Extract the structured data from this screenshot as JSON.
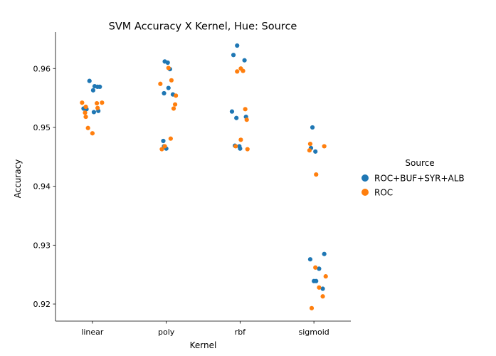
{
  "chart_data": {
    "type": "scatter",
    "title": "SVM Accuracy X Kernel, Hue: Source",
    "xlabel": "Kernel",
    "ylabel": "Accuracy",
    "categories": [
      "linear",
      "poly",
      "rbf",
      "sigmoid"
    ],
    "ylim": [
      0.9171,
      0.9662
    ],
    "yticks": [
      0.92,
      0.93,
      0.94,
      0.95,
      0.96
    ],
    "ytick_labels": [
      "0.92",
      "0.93",
      "0.94",
      "0.95",
      "0.96"
    ],
    "grid": false,
    "legend": {
      "title": "Source",
      "placement": "right"
    },
    "series": [
      {
        "name": "ROC+BUF+SYR+ALB",
        "color": "#1f77b4",
        "points": [
          {
            "x": "linear",
            "offset": -0.04,
            "y": 0.9579
          },
          {
            "x": "linear",
            "offset": 0.03,
            "y": 0.957
          },
          {
            "x": "linear",
            "offset": 0.07,
            "y": 0.9569
          },
          {
            "x": "linear",
            "offset": 0.1,
            "y": 0.9569
          },
          {
            "x": "linear",
            "offset": 0.01,
            "y": 0.9563
          },
          {
            "x": "linear",
            "offset": -0.12,
            "y": 0.9532
          },
          {
            "x": "linear",
            "offset": -0.08,
            "y": 0.9531
          },
          {
            "x": "linear",
            "offset": 0.08,
            "y": 0.9528
          },
          {
            "x": "linear",
            "offset": 0.02,
            "y": 0.9526
          },
          {
            "x": "poly",
            "offset": -0.02,
            "y": 0.9612
          },
          {
            "x": "poly",
            "offset": 0.02,
            "y": 0.961
          },
          {
            "x": "poly",
            "offset": 0.05,
            "y": 0.9599
          },
          {
            "x": "poly",
            "offset": 0.03,
            "y": 0.9567
          },
          {
            "x": "poly",
            "offset": -0.03,
            "y": 0.9558
          },
          {
            "x": "poly",
            "offset": 0.09,
            "y": 0.9556
          },
          {
            "x": "poly",
            "offset": -0.04,
            "y": 0.9477
          },
          {
            "x": "poly",
            "offset": -0.03,
            "y": 0.9468
          },
          {
            "x": "poly",
            "offset": 0.0,
            "y": 0.9464
          },
          {
            "x": "rbf",
            "offset": -0.04,
            "y": 0.9639
          },
          {
            "x": "rbf",
            "offset": -0.09,
            "y": 0.9623
          },
          {
            "x": "rbf",
            "offset": 0.06,
            "y": 0.9614
          },
          {
            "x": "rbf",
            "offset": -0.11,
            "y": 0.9527
          },
          {
            "x": "rbf",
            "offset": 0.08,
            "y": 0.9518
          },
          {
            "x": "rbf",
            "offset": -0.05,
            "y": 0.9516
          },
          {
            "x": "rbf",
            "offset": -0.07,
            "y": 0.9469
          },
          {
            "x": "rbf",
            "offset": -0.01,
            "y": 0.9468
          },
          {
            "x": "rbf",
            "offset": 0.0,
            "y": 0.9464
          },
          {
            "x": "sigmoid",
            "offset": -0.02,
            "y": 0.95
          },
          {
            "x": "sigmoid",
            "offset": -0.04,
            "y": 0.9465
          },
          {
            "x": "sigmoid",
            "offset": 0.02,
            "y": 0.9459
          },
          {
            "x": "sigmoid",
            "offset": 0.14,
            "y": 0.9285
          },
          {
            "x": "sigmoid",
            "offset": -0.05,
            "y": 0.9276
          },
          {
            "x": "sigmoid",
            "offset": 0.07,
            "y": 0.926
          },
          {
            "x": "sigmoid",
            "offset": 0.0,
            "y": 0.9239
          },
          {
            "x": "sigmoid",
            "offset": 0.03,
            "y": 0.9239
          },
          {
            "x": "sigmoid",
            "offset": 0.12,
            "y": 0.9226
          }
        ]
      },
      {
        "name": "ROC",
        "color": "#ff7f0e",
        "points": [
          {
            "x": "linear",
            "offset": -0.14,
            "y": 0.9542
          },
          {
            "x": "linear",
            "offset": 0.13,
            "y": 0.9542
          },
          {
            "x": "linear",
            "offset": 0.06,
            "y": 0.9541
          },
          {
            "x": "linear",
            "offset": -0.09,
            "y": 0.9535
          },
          {
            "x": "linear",
            "offset": 0.07,
            "y": 0.9533
          },
          {
            "x": "linear",
            "offset": -0.1,
            "y": 0.9525
          },
          {
            "x": "linear",
            "offset": -0.09,
            "y": 0.9518
          },
          {
            "x": "linear",
            "offset": -0.06,
            "y": 0.9499
          },
          {
            "x": "linear",
            "offset": 0.0,
            "y": 0.949
          },
          {
            "x": "poly",
            "offset": 0.03,
            "y": 0.9601
          },
          {
            "x": "poly",
            "offset": 0.07,
            "y": 0.958
          },
          {
            "x": "poly",
            "offset": -0.08,
            "y": 0.9574
          },
          {
            "x": "poly",
            "offset": 0.13,
            "y": 0.9554
          },
          {
            "x": "poly",
            "offset": 0.12,
            "y": 0.9539
          },
          {
            "x": "poly",
            "offset": 0.1,
            "y": 0.9532
          },
          {
            "x": "poly",
            "offset": 0.06,
            "y": 0.9481
          },
          {
            "x": "poly",
            "offset": -0.02,
            "y": 0.9468
          },
          {
            "x": "poly",
            "offset": -0.06,
            "y": 0.9463
          },
          {
            "x": "rbf",
            "offset": 0.01,
            "y": 0.96
          },
          {
            "x": "rbf",
            "offset": -0.04,
            "y": 0.9595
          },
          {
            "x": "rbf",
            "offset": 0.04,
            "y": 0.9596
          },
          {
            "x": "rbf",
            "offset": 0.07,
            "y": 0.9531
          },
          {
            "x": "rbf",
            "offset": 0.09,
            "y": 0.9513
          },
          {
            "x": "rbf",
            "offset": 0.01,
            "y": 0.9479
          },
          {
            "x": "rbf",
            "offset": -0.06,
            "y": 0.9468
          },
          {
            "x": "rbf",
            "offset": 0.1,
            "y": 0.9463
          },
          {
            "x": "sigmoid",
            "offset": -0.05,
            "y": 0.9472
          },
          {
            "x": "sigmoid",
            "offset": 0.14,
            "y": 0.9468
          },
          {
            "x": "sigmoid",
            "offset": -0.06,
            "y": 0.9461
          },
          {
            "x": "sigmoid",
            "offset": 0.03,
            "y": 0.942
          },
          {
            "x": "sigmoid",
            "offset": 0.02,
            "y": 0.9262
          },
          {
            "x": "sigmoid",
            "offset": 0.16,
            "y": 0.9247
          },
          {
            "x": "sigmoid",
            "offset": 0.07,
            "y": 0.9228
          },
          {
            "x": "sigmoid",
            "offset": 0.12,
            "y": 0.9213
          },
          {
            "x": "sigmoid",
            "offset": -0.03,
            "y": 0.9193
          }
        ]
      }
    ]
  }
}
